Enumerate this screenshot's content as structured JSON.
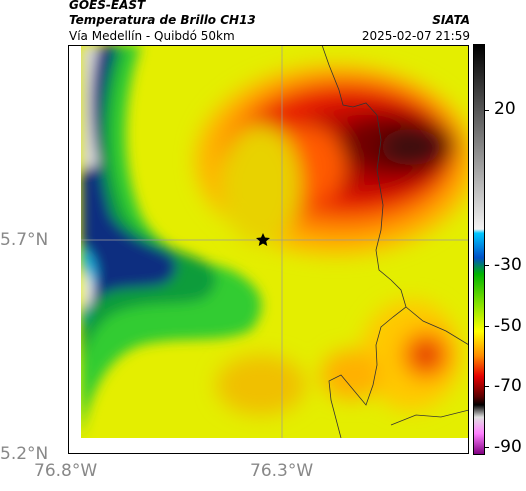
{
  "header": {
    "title_line1": "GOES-EAST",
    "title_line2": "Temperatura de Brillo CH13",
    "subtitle": "Vía Medellín - Quibdó 50km",
    "org": "SIATA",
    "timestamp": "2025-02-07 21:59"
  },
  "map": {
    "lat_labels": [
      "5.7°N",
      "5.2°N"
    ],
    "lon_labels": [
      "76.8°W",
      "76.3°W"
    ],
    "marker_icon": "star-icon"
  },
  "colorbar": {
    "labels": [
      "20",
      "-30",
      "-50",
      "-70",
      "-90"
    ]
  }
}
